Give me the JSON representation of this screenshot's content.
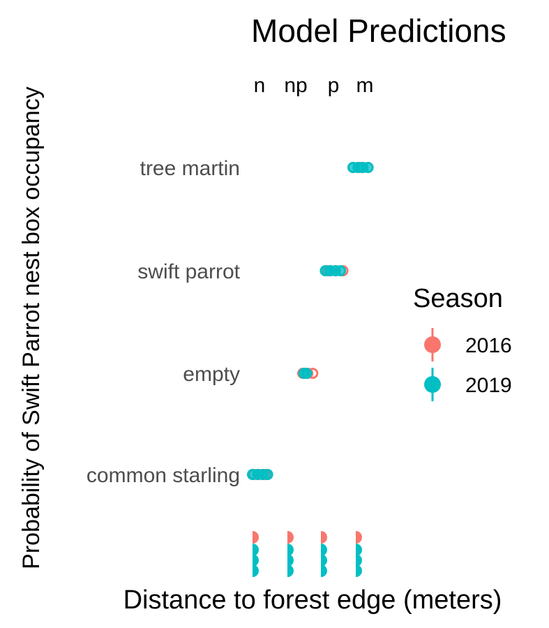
{
  "chart_data": {
    "type": "scatter",
    "title": "Model Predictions",
    "xlabel": "Distance to forest edge (meters)",
    "ylabel": "Probability of Swift Parrot nest box occupancy",
    "categories": [
      "common starling",
      "empty",
      "swift parrot",
      "tree martin"
    ],
    "top_strip_labels": [
      "n",
      "np",
      "p",
      "m"
    ],
    "legend": {
      "title": "Season",
      "placement": "right",
      "items": [
        {
          "label": "2016",
          "color": "#F8766D"
        },
        {
          "label": "2019",
          "color": "#00BFC4"
        }
      ]
    },
    "series": [
      {
        "name": "2016",
        "color": "#F8766D",
        "points": [
          {
            "category": "common starling",
            "x": [
              0.05,
              0.25,
              0.5
            ]
          },
          {
            "category": "empty",
            "x": [
              2.0,
              2.2,
              2.4
            ]
          },
          {
            "category": "swift parrot",
            "x": [
              3.0,
              3.3,
              3.6
            ]
          },
          {
            "category": "tree martin",
            "x": [
              4.0,
              4.3,
              4.6
            ]
          }
        ]
      },
      {
        "name": "2019",
        "color": "#00BFC4",
        "points": [
          {
            "category": "common starling",
            "x": [
              0.0,
              0.2,
              0.4,
              0.6
            ]
          },
          {
            "category": "empty",
            "x": [
              2.05,
              2.15
            ]
          },
          {
            "category": "swift parrot",
            "x": [
              2.9,
              3.1,
              3.3,
              3.5
            ]
          },
          {
            "category": "tree martin",
            "x": [
              4.0,
              4.2,
              4.4,
              4.6
            ]
          }
        ]
      }
    ],
    "grid": false
  }
}
